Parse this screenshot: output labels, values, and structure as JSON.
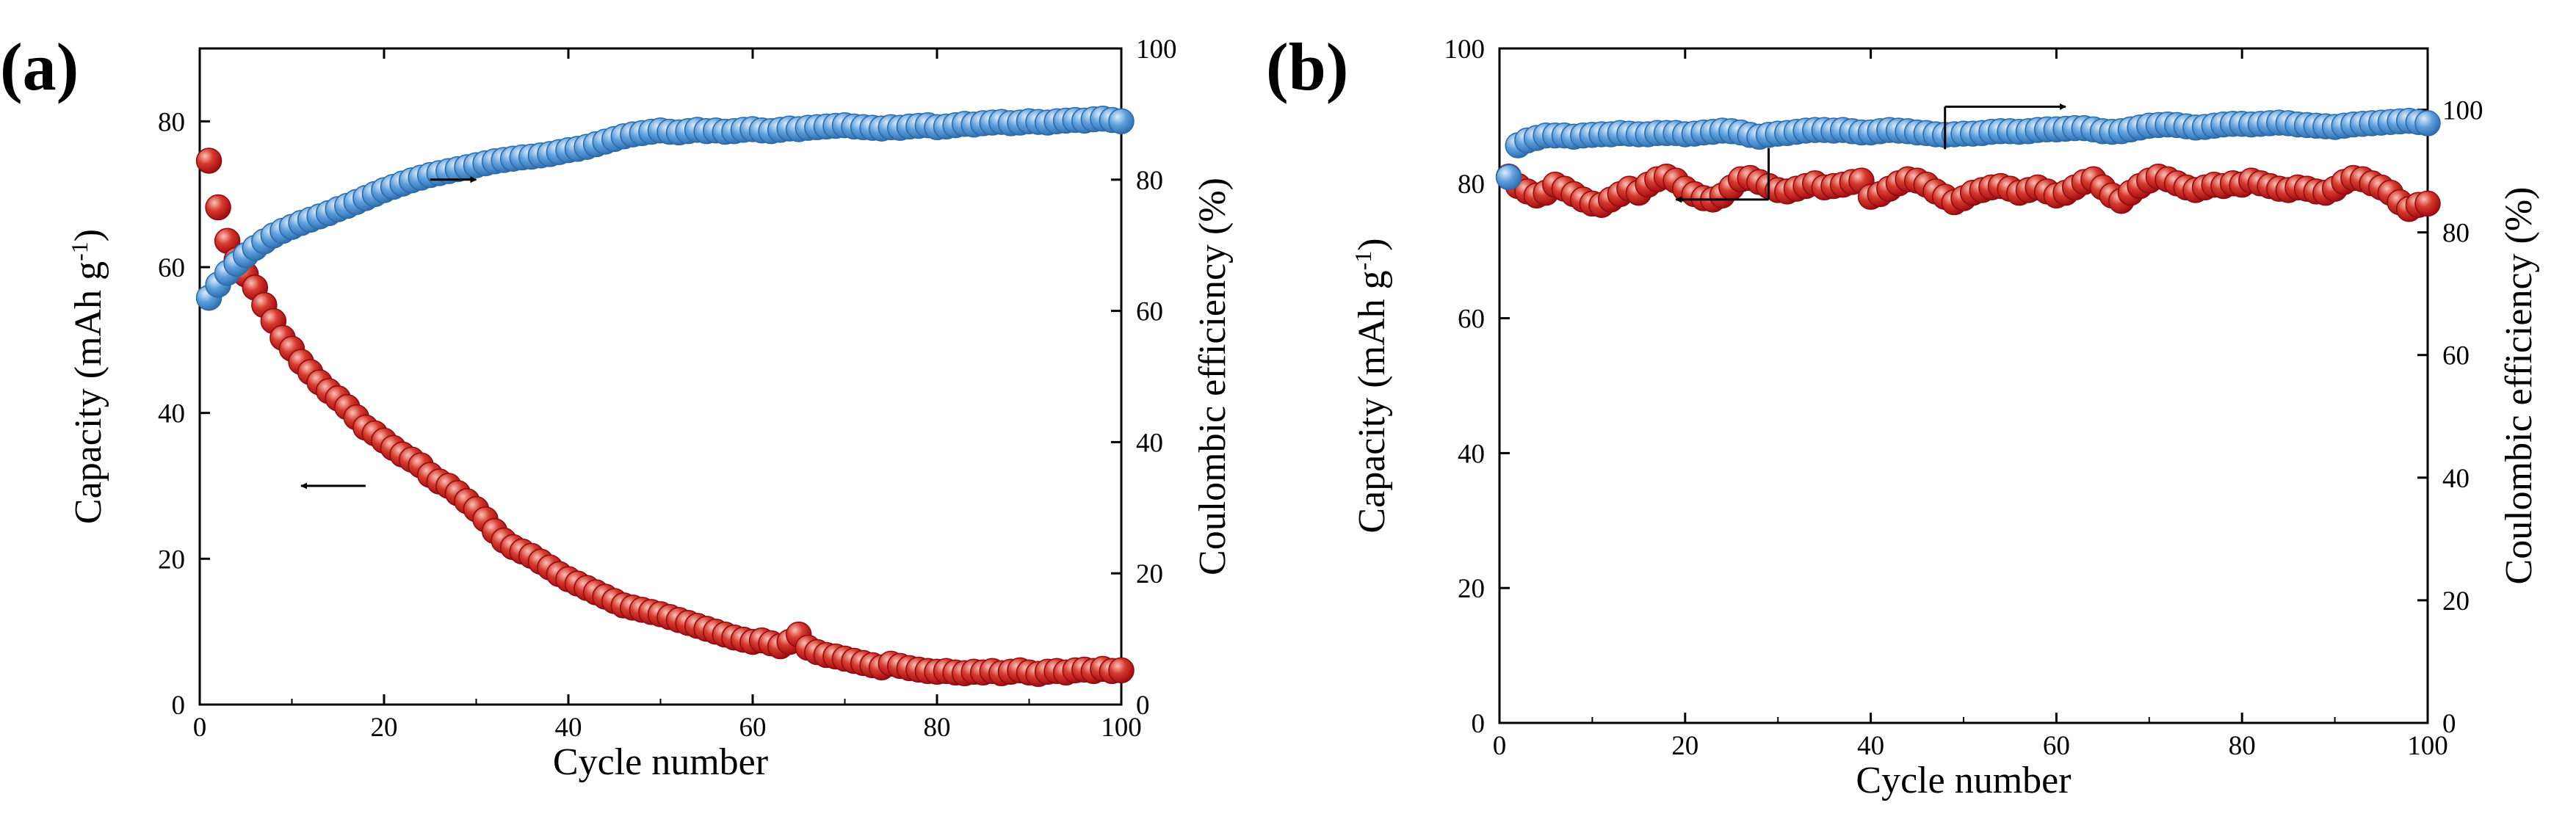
{
  "figure": {
    "panels": [
      "(a)",
      "(b)"
    ],
    "colors": {
      "capacity": "#c8161d",
      "efficiency": "#4f93d2",
      "axis": "#000000"
    }
  },
  "chart_data": [
    {
      "panel": "(a)",
      "type": "scatter",
      "xlabel": "Cycle number",
      "ylabel_left": "Capacity (mAh g",
      "ylabel_left_sup": "-1",
      "ylabel_left_tail": ")",
      "ylabel_right": "Coulombic efficiency (%)",
      "xlim": [
        0,
        100
      ],
      "ylim_left": [
        0,
        90
      ],
      "ylim_right": [
        0,
        100
      ],
      "xticks": [
        0,
        20,
        40,
        60,
        80,
        100
      ],
      "yticks_left": [
        0,
        20,
        40,
        60,
        80
      ],
      "yticks_right": [
        0,
        20,
        40,
        60,
        80,
        100
      ],
      "series": [
        {
          "name": "Capacity",
          "axis": "left",
          "x": [
            1,
            2,
            3,
            4,
            5,
            6,
            7,
            8,
            9,
            10,
            11,
            12,
            13,
            14,
            15,
            16,
            17,
            18,
            19,
            20,
            21,
            22,
            23,
            24,
            25,
            26,
            27,
            28,
            29,
            30,
            31,
            32,
            33,
            34,
            35,
            36,
            37,
            38,
            39,
            40,
            41,
            42,
            43,
            44,
            45,
            46,
            47,
            48,
            49,
            50,
            51,
            52,
            53,
            54,
            55,
            56,
            57,
            58,
            59,
            60,
            61,
            62,
            63,
            64,
            65,
            66,
            67,
            68,
            69,
            70,
            71,
            72,
            73,
            74,
            75,
            76,
            77,
            78,
            79,
            80,
            81,
            82,
            83,
            84,
            85,
            86,
            87,
            88,
            89,
            90,
            91,
            92,
            93,
            94,
            95,
            96,
            97,
            98,
            99,
            100
          ],
          "y": [
            74.6,
            68.2,
            63.6,
            61.0,
            59.0,
            57.2,
            54.8,
            52.6,
            50.3,
            48.8,
            47.0,
            45.6,
            44.2,
            43.0,
            42.0,
            40.8,
            39.4,
            38.0,
            37.2,
            36.2,
            35.2,
            34.3,
            33.6,
            32.8,
            31.5,
            30.6,
            30.0,
            29.0,
            27.9,
            26.8,
            25.4,
            23.8,
            22.5,
            21.6,
            21.0,
            20.4,
            19.6,
            18.8,
            17.9,
            17.2,
            16.6,
            16.0,
            15.4,
            14.8,
            14.2,
            13.6,
            13.3,
            13.0,
            12.7,
            12.4,
            12.0,
            11.6,
            11.2,
            10.8,
            10.4,
            10.0,
            9.6,
            9.2,
            8.9,
            8.6,
            8.8,
            8.4,
            8.0,
            8.6,
            9.6,
            7.8,
            7.2,
            6.8,
            6.6,
            6.3,
            6.0,
            5.7,
            5.4,
            5.1,
            5.6,
            5.3,
            5.0,
            4.8,
            4.6,
            4.5,
            4.6,
            4.4,
            4.3,
            4.5,
            4.4,
            4.6,
            4.3,
            4.5,
            4.7,
            4.4,
            4.2,
            4.5,
            4.6,
            4.4,
            4.7,
            4.8,
            4.6,
            4.9,
            4.6,
            4.7
          ]
        },
        {
          "name": "Coulombic efficiency",
          "axis": "right",
          "x": [
            1,
            2,
            3,
            4,
            5,
            6,
            7,
            8,
            9,
            10,
            11,
            12,
            13,
            14,
            15,
            16,
            17,
            18,
            19,
            20,
            21,
            22,
            23,
            24,
            25,
            26,
            27,
            28,
            29,
            30,
            31,
            32,
            33,
            34,
            35,
            36,
            37,
            38,
            39,
            40,
            41,
            42,
            43,
            44,
            45,
            46,
            47,
            48,
            49,
            50,
            51,
            52,
            53,
            54,
            55,
            56,
            57,
            58,
            59,
            60,
            61,
            62,
            63,
            64,
            65,
            66,
            67,
            68,
            69,
            70,
            71,
            72,
            73,
            74,
            75,
            76,
            77,
            78,
            79,
            80,
            81,
            82,
            83,
            84,
            85,
            86,
            87,
            88,
            89,
            90,
            91,
            92,
            93,
            94,
            95,
            96,
            97,
            98,
            99,
            100
          ],
          "y": [
            62.0,
            64.0,
            65.8,
            67.2,
            68.5,
            69.6,
            70.6,
            71.5,
            72.2,
            72.8,
            73.4,
            73.9,
            74.4,
            74.9,
            75.5,
            76.0,
            76.6,
            77.2,
            77.8,
            78.4,
            78.9,
            79.4,
            79.9,
            80.3,
            80.7,
            81.0,
            81.3,
            81.6,
            81.9,
            82.2,
            82.5,
            82.8,
            83.0,
            83.2,
            83.4,
            83.5,
            83.7,
            83.9,
            84.2,
            84.5,
            84.7,
            85.0,
            85.4,
            85.8,
            86.2,
            86.6,
            86.9,
            87.1,
            87.3,
            87.5,
            87.3,
            87.2,
            87.4,
            87.6,
            87.4,
            87.5,
            87.3,
            87.4,
            87.6,
            87.7,
            87.5,
            87.4,
            87.6,
            87.8,
            87.7,
            87.9,
            88.0,
            88.1,
            88.2,
            88.3,
            88.1,
            88.0,
            87.9,
            87.8,
            88.0,
            87.9,
            88.1,
            88.2,
            88.3,
            88.0,
            88.1,
            88.3,
            88.5,
            88.4,
            88.6,
            88.7,
            88.8,
            88.6,
            88.7,
            88.9,
            88.8,
            88.7,
            88.9,
            89.0,
            89.1,
            89.0,
            89.2,
            89.3,
            89.1,
            88.9
          ]
        }
      ],
      "annotations": [
        {
          "type": "arrow",
          "points_to": "right axis",
          "series": "Coulombic efficiency",
          "x": [
            25,
            30
          ],
          "y_right": 80
        },
        {
          "type": "arrow",
          "points_to": "left axis",
          "series": "Capacity",
          "x": [
            18,
            11
          ],
          "y_left": 30
        }
      ]
    },
    {
      "panel": "(b)",
      "type": "scatter",
      "xlabel": "Cycle number",
      "ylabel_left": "Capacity (mAh g",
      "ylabel_left_sup": "-1",
      "ylabel_left_tail": ")",
      "ylabel_right": "Coulombic efficiency (%)",
      "xlim": [
        0,
        100
      ],
      "ylim_left": [
        0,
        100
      ],
      "ylim_right": [
        0,
        110
      ],
      "xticks": [
        0,
        20,
        40,
        60,
        80,
        100
      ],
      "yticks_left": [
        0,
        20,
        40,
        60,
        80,
        100
      ],
      "yticks_right": [
        0,
        20,
        40,
        60,
        80,
        100
      ],
      "series": [
        {
          "name": "Capacity",
          "axis": "left",
          "x": [
            1,
            2,
            3,
            4,
            5,
            6,
            7,
            8,
            9,
            10,
            11,
            12,
            13,
            14,
            15,
            16,
            17,
            18,
            19,
            20,
            21,
            22,
            23,
            24,
            25,
            26,
            27,
            28,
            29,
            30,
            31,
            32,
            33,
            34,
            35,
            36,
            37,
            38,
            39,
            40,
            41,
            42,
            43,
            44,
            45,
            46,
            47,
            48,
            49,
            50,
            51,
            52,
            53,
            54,
            55,
            56,
            57,
            58,
            59,
            60,
            61,
            62,
            63,
            64,
            65,
            66,
            67,
            68,
            69,
            70,
            71,
            72,
            73,
            74,
            75,
            76,
            77,
            78,
            79,
            80,
            81,
            82,
            83,
            84,
            85,
            86,
            87,
            88,
            89,
            90,
            91,
            92,
            93,
            94,
            95,
            96,
            97,
            98,
            99,
            100
          ],
          "y": [
            81.0,
            79.6,
            78.8,
            78.2,
            78.6,
            79.8,
            79.2,
            78.4,
            77.6,
            77.0,
            76.8,
            77.6,
            78.4,
            79.2,
            78.6,
            79.8,
            80.6,
            81.0,
            80.4,
            79.2,
            78.4,
            77.8,
            77.6,
            78.2,
            79.4,
            80.6,
            80.8,
            80.2,
            79.6,
            79.0,
            78.8,
            79.2,
            79.6,
            80.0,
            79.4,
            79.6,
            79.8,
            80.2,
            80.4,
            78.0,
            78.4,
            79.2,
            80.0,
            80.6,
            80.4,
            79.8,
            78.8,
            78.0,
            77.2,
            77.8,
            78.6,
            79.0,
            79.4,
            79.6,
            79.2,
            78.6,
            79.0,
            79.4,
            78.8,
            78.2,
            78.6,
            79.4,
            80.2,
            80.6,
            79.4,
            78.2,
            77.4,
            78.6,
            79.6,
            80.4,
            81.0,
            80.6,
            80.0,
            79.4,
            79.0,
            79.4,
            79.8,
            79.6,
            80.0,
            79.8,
            80.4,
            80.0,
            79.6,
            79.2,
            79.0,
            79.4,
            79.2,
            78.8,
            78.6,
            79.2,
            80.2,
            80.8,
            80.6,
            80.0,
            79.4,
            78.6,
            77.2,
            76.2,
            76.8,
            77.0
          ]
        },
        {
          "name": "Coulombic efficiency",
          "axis": "right",
          "x": [
            1,
            2,
            3,
            4,
            5,
            6,
            7,
            8,
            9,
            10,
            11,
            12,
            13,
            14,
            15,
            16,
            17,
            18,
            19,
            20,
            21,
            22,
            23,
            24,
            25,
            26,
            27,
            28,
            29,
            30,
            31,
            32,
            33,
            34,
            35,
            36,
            37,
            38,
            39,
            40,
            41,
            42,
            43,
            44,
            45,
            46,
            47,
            48,
            49,
            50,
            51,
            52,
            53,
            54,
            55,
            56,
            57,
            58,
            59,
            60,
            61,
            62,
            63,
            64,
            65,
            66,
            67,
            68,
            69,
            70,
            71,
            72,
            73,
            74,
            75,
            76,
            77,
            78,
            79,
            80,
            81,
            82,
            83,
            84,
            85,
            86,
            87,
            88,
            89,
            90,
            91,
            92,
            93,
            94,
            95,
            96,
            97,
            98,
            99,
            100
          ],
          "y": [
            89.0,
            94.2,
            95.0,
            95.4,
            95.8,
            95.8,
            95.8,
            95.6,
            95.8,
            95.9,
            96.0,
            96.0,
            96.2,
            96.1,
            96.0,
            96.0,
            96.2,
            96.2,
            96.2,
            96.0,
            96.1,
            96.3,
            96.4,
            96.6,
            96.5,
            96.3,
            95.9,
            95.6,
            95.9,
            96.1,
            96.2,
            96.4,
            96.6,
            96.7,
            96.7,
            96.6,
            96.7,
            96.5,
            96.3,
            96.3,
            96.5,
            96.7,
            96.6,
            96.5,
            96.3,
            96.2,
            96.0,
            95.9,
            96.0,
            96.1,
            96.1,
            96.2,
            96.4,
            96.5,
            96.5,
            96.4,
            96.5,
            96.7,
            96.8,
            96.8,
            96.9,
            97.0,
            97.0,
            96.8,
            96.5,
            96.4,
            96.5,
            96.8,
            97.1,
            97.4,
            97.5,
            97.6,
            97.5,
            97.3,
            97.1,
            97.2,
            97.4,
            97.6,
            97.7,
            97.7,
            97.6,
            97.7,
            97.8,
            97.9,
            97.8,
            97.6,
            97.5,
            97.4,
            97.3,
            97.2,
            97.4,
            97.6,
            97.7,
            97.8,
            97.9,
            98.0,
            98.1,
            98.2,
            98.0,
            97.8
          ]
        }
      ],
      "annotations": [
        {
          "type": "arrow",
          "points_to": "right axis",
          "series": "Coulombic efficiency",
          "x": [
            48,
            61
          ],
          "y_right": 100.5
        },
        {
          "type": "arrow",
          "points_to": "left axis",
          "series": "Capacity",
          "x": [
            29,
            19
          ],
          "y_left": 77.6
        }
      ]
    }
  ]
}
